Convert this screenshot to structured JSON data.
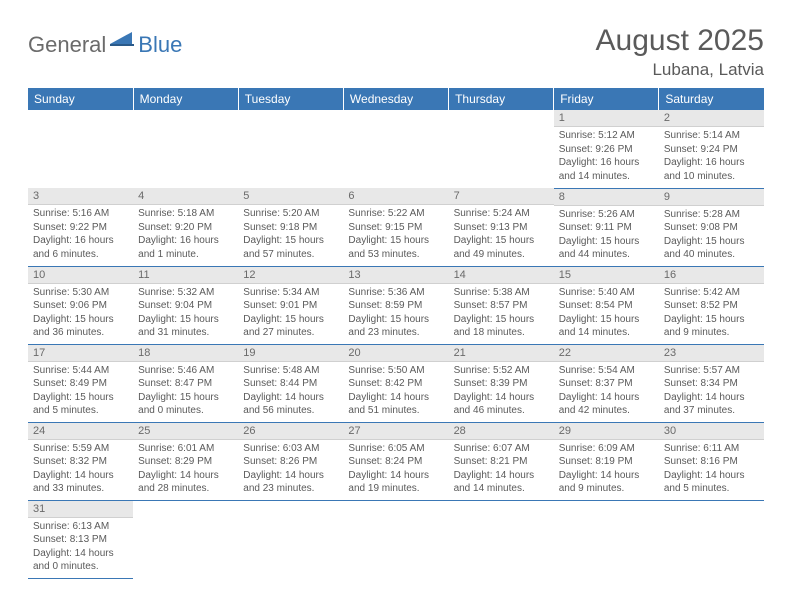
{
  "logo": {
    "part1": "General",
    "part2": "Blue"
  },
  "header": {
    "month": "August 2025",
    "location": "Lubana, Latvia"
  },
  "colors": {
    "accent": "#3a77b5",
    "grey_bg": "#e8e8e8",
    "text": "#5a5a5a"
  },
  "day_names": [
    "Sunday",
    "Monday",
    "Tuesday",
    "Wednesday",
    "Thursday",
    "Friday",
    "Saturday"
  ],
  "weeks": [
    [
      null,
      null,
      null,
      null,
      null,
      {
        "n": "1",
        "sunrise": "5:12 AM",
        "sunset": "9:26 PM",
        "daylight": "16 hours and 14 minutes."
      },
      {
        "n": "2",
        "sunrise": "5:14 AM",
        "sunset": "9:24 PM",
        "daylight": "16 hours and 10 minutes."
      }
    ],
    [
      {
        "n": "3",
        "sunrise": "5:16 AM",
        "sunset": "9:22 PM",
        "daylight": "16 hours and 6 minutes."
      },
      {
        "n": "4",
        "sunrise": "5:18 AM",
        "sunset": "9:20 PM",
        "daylight": "16 hours and 1 minute."
      },
      {
        "n": "5",
        "sunrise": "5:20 AM",
        "sunset": "9:18 PM",
        "daylight": "15 hours and 57 minutes."
      },
      {
        "n": "6",
        "sunrise": "5:22 AM",
        "sunset": "9:15 PM",
        "daylight": "15 hours and 53 minutes."
      },
      {
        "n": "7",
        "sunrise": "5:24 AM",
        "sunset": "9:13 PM",
        "daylight": "15 hours and 49 minutes."
      },
      {
        "n": "8",
        "sunrise": "5:26 AM",
        "sunset": "9:11 PM",
        "daylight": "15 hours and 44 minutes."
      },
      {
        "n": "9",
        "sunrise": "5:28 AM",
        "sunset": "9:08 PM",
        "daylight": "15 hours and 40 minutes."
      }
    ],
    [
      {
        "n": "10",
        "sunrise": "5:30 AM",
        "sunset": "9:06 PM",
        "daylight": "15 hours and 36 minutes."
      },
      {
        "n": "11",
        "sunrise": "5:32 AM",
        "sunset": "9:04 PM",
        "daylight": "15 hours and 31 minutes."
      },
      {
        "n": "12",
        "sunrise": "5:34 AM",
        "sunset": "9:01 PM",
        "daylight": "15 hours and 27 minutes."
      },
      {
        "n": "13",
        "sunrise": "5:36 AM",
        "sunset": "8:59 PM",
        "daylight": "15 hours and 23 minutes."
      },
      {
        "n": "14",
        "sunrise": "5:38 AM",
        "sunset": "8:57 PM",
        "daylight": "15 hours and 18 minutes."
      },
      {
        "n": "15",
        "sunrise": "5:40 AM",
        "sunset": "8:54 PM",
        "daylight": "15 hours and 14 minutes."
      },
      {
        "n": "16",
        "sunrise": "5:42 AM",
        "sunset": "8:52 PM",
        "daylight": "15 hours and 9 minutes."
      }
    ],
    [
      {
        "n": "17",
        "sunrise": "5:44 AM",
        "sunset": "8:49 PM",
        "daylight": "15 hours and 5 minutes."
      },
      {
        "n": "18",
        "sunrise": "5:46 AM",
        "sunset": "8:47 PM",
        "daylight": "15 hours and 0 minutes."
      },
      {
        "n": "19",
        "sunrise": "5:48 AM",
        "sunset": "8:44 PM",
        "daylight": "14 hours and 56 minutes."
      },
      {
        "n": "20",
        "sunrise": "5:50 AM",
        "sunset": "8:42 PM",
        "daylight": "14 hours and 51 minutes."
      },
      {
        "n": "21",
        "sunrise": "5:52 AM",
        "sunset": "8:39 PM",
        "daylight": "14 hours and 46 minutes."
      },
      {
        "n": "22",
        "sunrise": "5:54 AM",
        "sunset": "8:37 PM",
        "daylight": "14 hours and 42 minutes."
      },
      {
        "n": "23",
        "sunrise": "5:57 AM",
        "sunset": "8:34 PM",
        "daylight": "14 hours and 37 minutes."
      }
    ],
    [
      {
        "n": "24",
        "sunrise": "5:59 AM",
        "sunset": "8:32 PM",
        "daylight": "14 hours and 33 minutes."
      },
      {
        "n": "25",
        "sunrise": "6:01 AM",
        "sunset": "8:29 PM",
        "daylight": "14 hours and 28 minutes."
      },
      {
        "n": "26",
        "sunrise": "6:03 AM",
        "sunset": "8:26 PM",
        "daylight": "14 hours and 23 minutes."
      },
      {
        "n": "27",
        "sunrise": "6:05 AM",
        "sunset": "8:24 PM",
        "daylight": "14 hours and 19 minutes."
      },
      {
        "n": "28",
        "sunrise": "6:07 AM",
        "sunset": "8:21 PM",
        "daylight": "14 hours and 14 minutes."
      },
      {
        "n": "29",
        "sunrise": "6:09 AM",
        "sunset": "8:19 PM",
        "daylight": "14 hours and 9 minutes."
      },
      {
        "n": "30",
        "sunrise": "6:11 AM",
        "sunset": "8:16 PM",
        "daylight": "14 hours and 5 minutes."
      }
    ],
    [
      {
        "n": "31",
        "sunrise": "6:13 AM",
        "sunset": "8:13 PM",
        "daylight": "14 hours and 0 minutes."
      },
      null,
      null,
      null,
      null,
      null,
      null
    ]
  ],
  "labels": {
    "sunrise": "Sunrise: ",
    "sunset": "Sunset: ",
    "daylight": "Daylight: "
  }
}
